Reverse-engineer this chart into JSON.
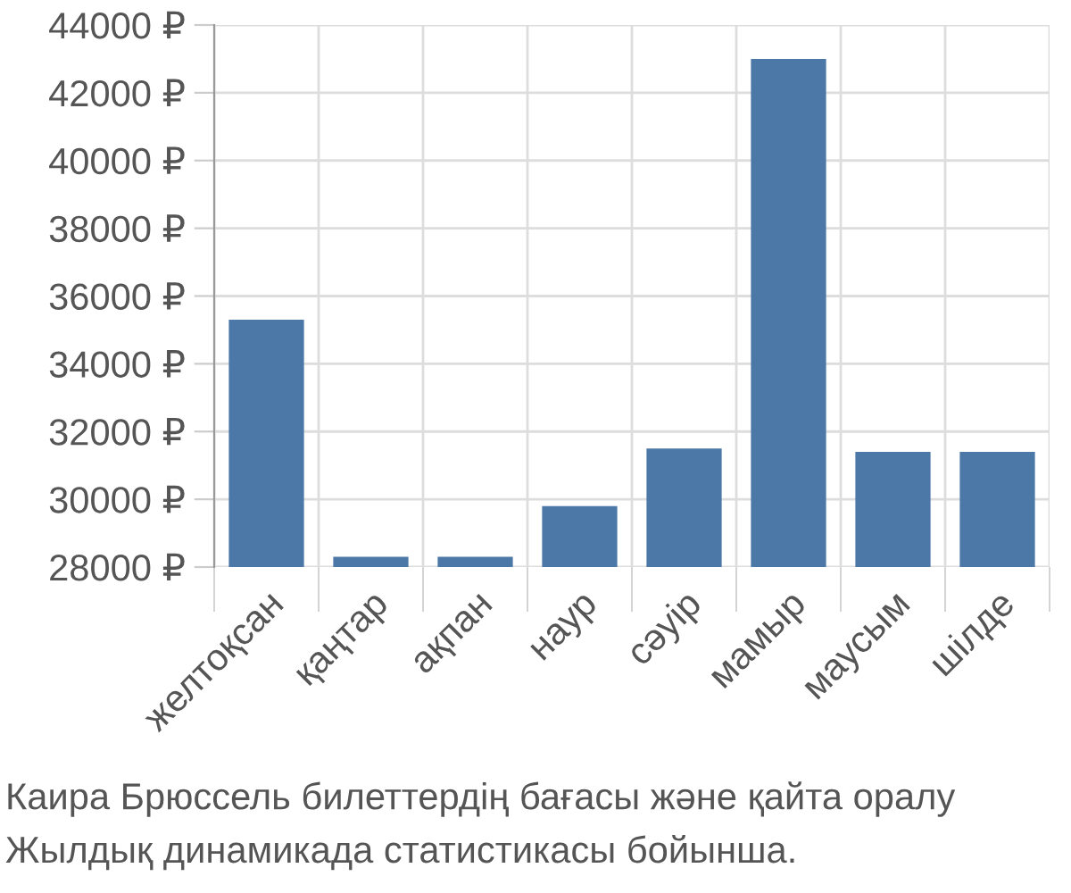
{
  "chart_data": {
    "type": "bar",
    "categories": [
      "желтоқсан",
      "қаңтар",
      "ақпан",
      "наур",
      "сәуір",
      "мамыр",
      "маусым",
      "шілде"
    ],
    "values": [
      35300,
      28300,
      28300,
      29800,
      31500,
      43000,
      31400,
      31400
    ],
    "color": "#4c78a8",
    "ylim": [
      28000,
      44000
    ],
    "yticks": [
      {
        "value": 28000,
        "label": "28000 ₽"
      },
      {
        "value": 30000,
        "label": "30000 ₽"
      },
      {
        "value": 32000,
        "label": "32000 ₽"
      },
      {
        "value": 34000,
        "label": "34000 ₽"
      },
      {
        "value": 36000,
        "label": "36000 ₽"
      },
      {
        "value": 38000,
        "label": "38000 ₽"
      },
      {
        "value": 40000,
        "label": "40000 ₽"
      },
      {
        "value": 42000,
        "label": "42000 ₽"
      },
      {
        "value": 44000,
        "label": "44000 ₽"
      }
    ],
    "grid": true,
    "annotations": [
      "Каира Брюссель билеттердің бағасы және қайта оралу",
      "Жылдық динамикада статистикасы бойынша."
    ]
  }
}
